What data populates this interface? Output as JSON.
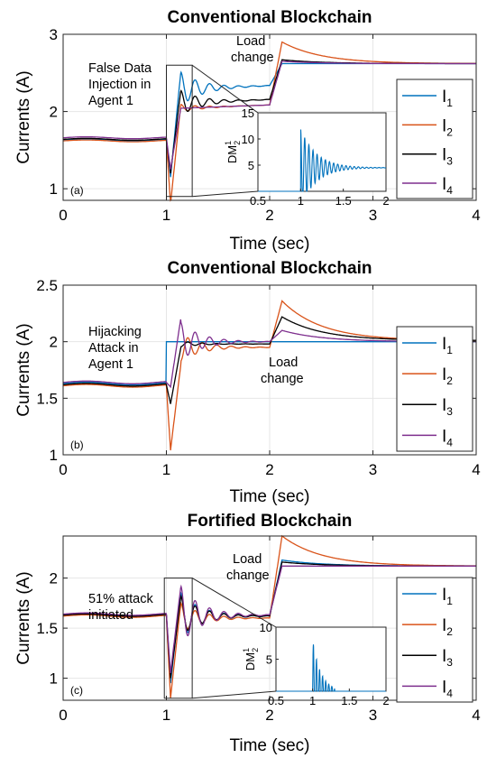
{
  "chart_data": [
    {
      "type": "line",
      "panel_label": "(a)",
      "title": "Conventional Blockchain",
      "xlabel": "Time (sec)",
      "ylabel": "Currents (A)",
      "xlim": [
        0,
        4
      ],
      "ylim": [
        0.85,
        3.0
      ],
      "xticks": [
        0,
        1,
        2,
        3,
        4
      ],
      "yticks": [
        1,
        2,
        3
      ],
      "grid": true,
      "legend_position": "right",
      "annotations": [
        "False Data",
        "Injection in",
        "Agent 1",
        "Load",
        "change"
      ],
      "series": [
        {
          "name": "I",
          "subscript": "1",
          "color": "#0072BD",
          "pre": 1.63,
          "attack_start": 1.0,
          "attack_dip": 1.15,
          "attack_peak": 2.52,
          "attack_settle": 2.3,
          "load_time": 2.0,
          "load_peak": 2.62,
          "final": 2.62
        },
        {
          "name": "I",
          "subscript": "2",
          "color": "#D95319",
          "pre": 1.62,
          "attack_start": 1.0,
          "attack_dip": 0.8,
          "attack_peak": 2.1,
          "attack_settle": 2.05,
          "load_time": 2.0,
          "load_peak": 2.9,
          "final": 2.62
        },
        {
          "name": "I",
          "subscript": "3",
          "color": "#000000",
          "pre": 1.64,
          "attack_start": 1.0,
          "attack_dip": 1.2,
          "attack_peak": 2.28,
          "attack_settle": 2.12,
          "load_time": 2.0,
          "load_peak": 2.67,
          "final": 2.62
        },
        {
          "name": "I",
          "subscript": "4",
          "color": "#7E2F8E",
          "pre": 1.66,
          "attack_start": 1.0,
          "attack_dip": 1.25,
          "attack_peak": 2.05,
          "attack_settle": 2.05,
          "load_time": 2.0,
          "load_peak": 2.65,
          "final": 2.62
        }
      ],
      "inset": {
        "ylabel": "DM",
        "ylabel_sub": "2",
        "ylabel_sup": "1",
        "xlim": [
          0.5,
          2
        ],
        "ylim": [
          0,
          15
        ],
        "xticks": [
          0.5,
          1,
          1.5,
          2
        ],
        "yticks": [
          5,
          10,
          15
        ],
        "type": "oscillation",
        "start": 1.0,
        "baseline": 4.5,
        "amplitude": 7.5,
        "color": "#0072BD"
      }
    },
    {
      "type": "line",
      "panel_label": "(b)",
      "title": "Conventional Blockchain",
      "xlabel": "Time (sec)",
      "ylabel": "Currents (A)",
      "xlim": [
        0,
        4
      ],
      "ylim": [
        1.0,
        2.5
      ],
      "xticks": [
        0,
        1,
        2,
        3,
        4
      ],
      "yticks": [
        1,
        1.5,
        2,
        2.5
      ],
      "grid": true,
      "legend_position": "right",
      "annotations": [
        "Hijacking",
        "Attack in",
        "Agent 1",
        "Load",
        "change"
      ],
      "series": [
        {
          "name": "I",
          "subscript": "1",
          "color": "#0072BD",
          "pre": 1.63,
          "attack_start": 1.0,
          "attack_dip": 2.0,
          "attack_peak": 2.0,
          "attack_settle": 2.0,
          "load_time": 2.0,
          "load_peak": 2.0,
          "final": 2.0
        },
        {
          "name": "I",
          "subscript": "2",
          "color": "#D95319",
          "pre": 1.61,
          "attack_start": 1.0,
          "attack_dip": 1.04,
          "attack_peak": 1.8,
          "attack_settle": 1.95,
          "load_time": 2.0,
          "load_peak": 2.36,
          "final": 2.01
        },
        {
          "name": "I",
          "subscript": "3",
          "color": "#000000",
          "pre": 1.62,
          "attack_start": 1.0,
          "attack_dip": 1.45,
          "attack_peak": 1.95,
          "attack_settle": 1.98,
          "load_time": 2.0,
          "load_peak": 2.22,
          "final": 2.01
        },
        {
          "name": "I",
          "subscript": "4",
          "color": "#7E2F8E",
          "pre": 1.64,
          "attack_start": 1.0,
          "attack_dip": 1.6,
          "attack_peak": 2.21,
          "attack_settle": 2.0,
          "load_time": 2.0,
          "load_peak": 2.1,
          "final": 2.0
        }
      ]
    },
    {
      "type": "line",
      "panel_label": "(c)",
      "title": "Fortified Blockchain",
      "xlabel": "Time (sec)",
      "ylabel": "Currents (A)",
      "xlim": [
        0,
        4
      ],
      "ylim": [
        0.78,
        2.42
      ],
      "xticks": [
        0,
        1,
        2,
        3,
        4
      ],
      "yticks": [
        1,
        1.5,
        2
      ],
      "grid": true,
      "legend_position": "right",
      "annotations": [
        "51% attack",
        "initiated",
        "Load",
        "change"
      ],
      "series": [
        {
          "name": "I",
          "subscript": "1",
          "color": "#0072BD",
          "pre": 1.63,
          "attack_start": 1.0,
          "attack_dip": 0.95,
          "attack_peak": 1.85,
          "attack_settle": 1.62,
          "load_time": 2.0,
          "load_peak": 2.18,
          "final": 2.12
        },
        {
          "name": "I",
          "subscript": "2",
          "color": "#D95319",
          "pre": 1.62,
          "attack_start": 1.0,
          "attack_dip": 0.8,
          "attack_peak": 1.75,
          "attack_settle": 1.6,
          "load_time": 2.0,
          "load_peak": 2.42,
          "final": 2.12
        },
        {
          "name": "I",
          "subscript": "3",
          "color": "#000000",
          "pre": 1.63,
          "attack_start": 1.0,
          "attack_dip": 1.0,
          "attack_peak": 1.82,
          "attack_settle": 1.62,
          "load_time": 2.0,
          "load_peak": 2.16,
          "final": 2.12
        },
        {
          "name": "I",
          "subscript": "4",
          "color": "#7E2F8E",
          "pre": 1.64,
          "attack_start": 1.0,
          "attack_dip": 1.05,
          "attack_peak": 1.92,
          "attack_settle": 1.63,
          "load_time": 2.0,
          "load_peak": 2.12,
          "final": 2.12
        }
      ],
      "inset": {
        "ylabel": "DM",
        "ylabel_sub": "2",
        "ylabel_sup": "1",
        "xlim": [
          0.5,
          2
        ],
        "ylim": [
          0,
          10
        ],
        "xticks": [
          0.5,
          1,
          1.5,
          2
        ],
        "yticks": [
          5,
          10
        ],
        "type": "spikes",
        "start": 1.0,
        "baseline": 0,
        "amplitude": 8,
        "color": "#0072BD"
      }
    }
  ]
}
